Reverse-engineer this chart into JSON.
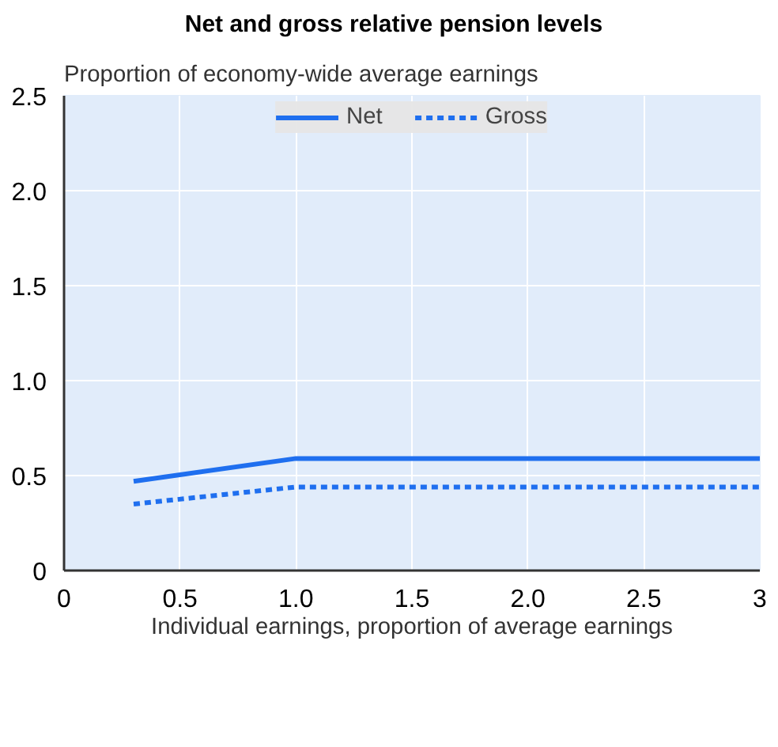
{
  "chart_data": {
    "type": "line",
    "title": "Net and gross relative pension levels",
    "ylabel": "Proportion of economy-wide average earnings",
    "xlabel": "Individual earnings, proportion of average earnings",
    "x": [
      0.3,
      1.0,
      3.0
    ],
    "series": [
      {
        "name": "Net",
        "color": "#1f6fef",
        "values": [
          0.47,
          0.59,
          0.59
        ],
        "line_style": "solid"
      },
      {
        "name": "Gross",
        "color": "#1f6fef",
        "values": [
          0.35,
          0.44,
          0.44
        ],
        "line_style": "dotted"
      }
    ],
    "xlim": [
      0,
      3
    ],
    "ylim": [
      0,
      2.5
    ],
    "xticks": [
      0,
      0.5,
      {
        "value": 1,
        "label": "1.0"
      },
      1.5,
      {
        "value": 2,
        "label": "2.0"
      },
      2.5,
      3
    ],
    "yticks": [
      0,
      0.5,
      {
        "value": 1,
        "label": "1.0"
      },
      1.5,
      {
        "value": 2,
        "label": "2.0"
      },
      2.5
    ],
    "grid": true,
    "legend": "top",
    "marker": "none"
  }
}
